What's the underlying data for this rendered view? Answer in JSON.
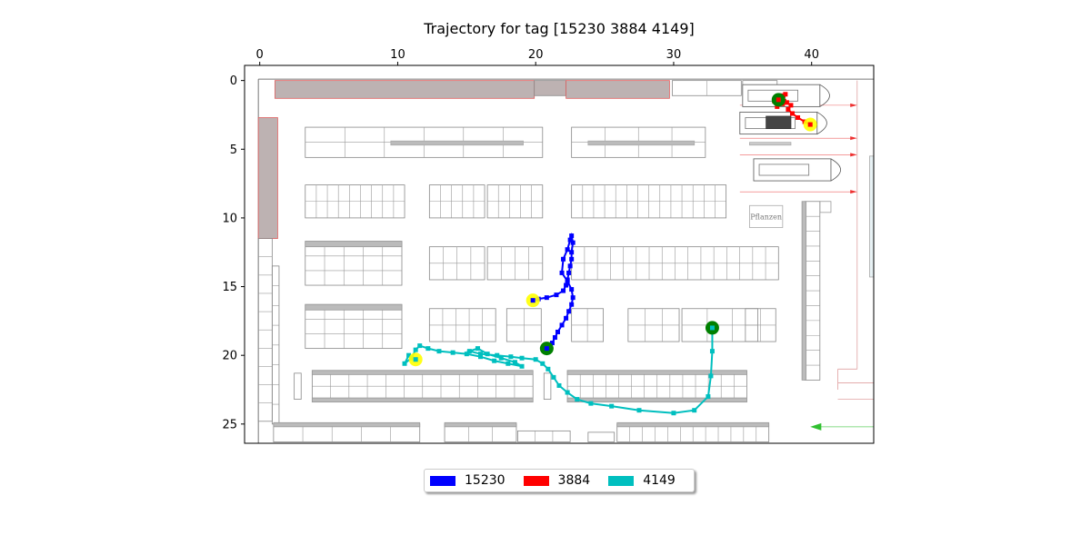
{
  "chart_data": {
    "type": "scatter",
    "title": "Trajectory for tag [15230  3884  4149]",
    "xlabel": "",
    "ylabel": "",
    "xlim": [
      -1.1,
      44.5
    ],
    "ylim": [
      26.4,
      -1.1
    ],
    "xticks": [
      0,
      10,
      20,
      30,
      40
    ],
    "yticks": [
      0,
      5,
      10,
      15,
      20,
      25
    ],
    "x_axis_position": "top",
    "grid": false,
    "legend_position": "bottom-center",
    "background": "store floor plan image",
    "floor_plan_labels": [
      "Pflanzen"
    ],
    "start_marker_color": "#ffff00",
    "end_marker_color": "#008000",
    "series": [
      {
        "name": "15230",
        "color": "#0000ff",
        "start": [
          19.8,
          16.0
        ],
        "end": [
          20.8,
          19.5
        ],
        "x": [
          19.8,
          20.2,
          20.8,
          21.5,
          22.0,
          22.2,
          22.3,
          22.4,
          22.5,
          22.6,
          22.6,
          22.7,
          22.6,
          22.5,
          22.3,
          22.0,
          21.9,
          22.3,
          22.6,
          22.7,
          22.6,
          22.4,
          22.2,
          21.9,
          21.6,
          21.4,
          21.2,
          20.8
        ],
        "y": [
          16.0,
          15.9,
          15.8,
          15.6,
          15.3,
          14.9,
          14.5,
          14.0,
          13.5,
          13.0,
          12.5,
          11.8,
          11.3,
          11.6,
          12.3,
          13.0,
          14.0,
          14.6,
          15.2,
          15.8,
          16.3,
          16.8,
          17.3,
          17.8,
          18.3,
          18.7,
          19.1,
          19.5
        ]
      },
      {
        "name": "3884",
        "color": "#ff0000",
        "start": [
          39.9,
          3.2
        ],
        "end": [
          37.6,
          1.4
        ],
        "x": [
          39.9,
          39.5,
          39.0,
          38.6,
          38.3,
          38.5,
          38.0,
          37.6,
          37.8,
          38.2,
          37.5,
          37.3,
          37.7,
          38.1,
          37.9,
          37.6
        ],
        "y": [
          3.2,
          3.0,
          2.7,
          2.4,
          2.1,
          1.8,
          1.5,
          1.3,
          1.1,
          1.6,
          1.9,
          1.5,
          1.2,
          1.0,
          1.7,
          1.4
        ]
      },
      {
        "name": "4149",
        "color": "#00bfbf",
        "start": [
          11.3,
          20.3
        ],
        "end": [
          32.8,
          18.0
        ],
        "x": [
          11.3,
          10.8,
          10.5,
          11.0,
          11.3,
          11.6,
          12.2,
          13.0,
          14.0,
          15.0,
          16.0,
          17.0,
          18.0,
          19.0,
          18.5,
          17.5,
          16.5,
          15.8,
          15.2,
          16.0,
          17.2,
          18.2,
          19.0,
          20.0,
          20.5,
          20.9,
          21.3,
          21.7,
          22.3,
          23.0,
          24.0,
          25.5,
          27.5,
          30.0,
          31.5,
          32.5,
          32.7,
          32.8,
          32.8
        ],
        "y": [
          20.3,
          20.0,
          20.6,
          20.2,
          19.6,
          19.3,
          19.5,
          19.7,
          19.8,
          19.9,
          20.1,
          20.4,
          20.6,
          20.8,
          20.5,
          20.2,
          19.9,
          19.5,
          19.7,
          19.9,
          20.0,
          20.1,
          20.2,
          20.3,
          20.6,
          21.0,
          21.6,
          22.2,
          22.7,
          23.2,
          23.5,
          23.7,
          24.0,
          24.2,
          24.0,
          23.0,
          21.5,
          19.7,
          18.0
        ]
      }
    ]
  },
  "legend": {
    "items": [
      {
        "label": "15230",
        "color": "#0000ff"
      },
      {
        "label": "3884",
        "color": "#ff0000"
      },
      {
        "label": "4149",
        "color": "#00bfbf"
      }
    ]
  }
}
